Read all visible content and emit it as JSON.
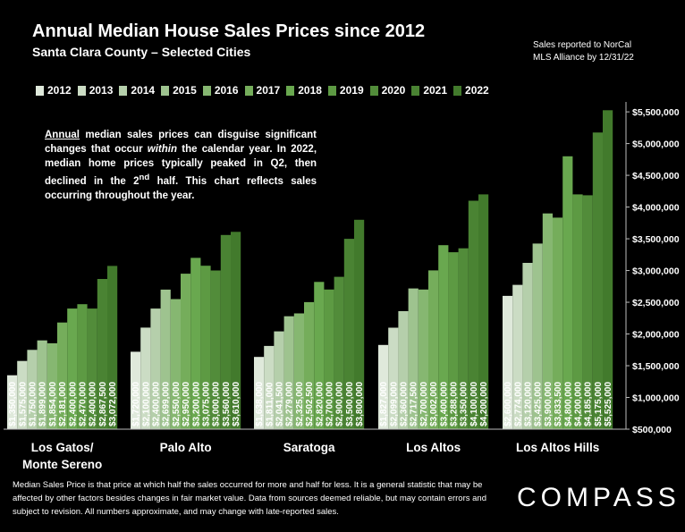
{
  "header": {
    "title": "Annual Median House Sales Prices since 2012",
    "subtitle": "Santa Clara County – Selected Cities",
    "source_line1": "Sales reported to NorCal",
    "source_line2": "MLS Alliance by 12/31/22"
  },
  "note": {
    "underlined": "Annual",
    "text1": " median sales prices can disguise significant changes that occur ",
    "italic": "within",
    "text2": " the calendar year. In 2022, median home prices typically peaked in Q2, then declined in the 2",
    "sup": "nd",
    "text3": " half. This chart reflects sales occurring throughout the year."
  },
  "footer": {
    "text": "Median Sales Price is that price at which half the sales occurred for more and half for less. It is a general statistic that may be affected by other factors besides changes in fair market value. Data from sources deemed reliable, but may contain errors and subject to revision.  All numbers approximate, and may change with late-reported sales.",
    "logo": "COMPASS"
  },
  "colors": [
    "#dfe9db",
    "#cbdcc4",
    "#b5cfab",
    "#9ec38f",
    "#86b771",
    "#75ad5b",
    "#69a84f",
    "#5d9a43",
    "#528c3a",
    "#4a8333",
    "#427a2c"
  ],
  "chart_data": {
    "type": "bar",
    "categories": [
      "Los Gatos/\nMonte Sereno",
      "Palo Alto",
      "Saratoga",
      "Los Altos",
      "Los Altos Hills"
    ],
    "ylim": [
      500000,
      5600000
    ],
    "yticks": [
      500000,
      1000000,
      1500000,
      2000000,
      2500000,
      3000000,
      3500000,
      4000000,
      4500000,
      5000000,
      5500000
    ],
    "ytick_labels": [
      "$500,000",
      "$1,000,000",
      "$1,500,000",
      "$2,000,000",
      "$2,500,000",
      "$3,000,000",
      "$3,500,000",
      "$4,000,000",
      "$4,500,000",
      "$5,000,000",
      "$5,500,000"
    ],
    "legend_position": "top",
    "series": [
      {
        "name": "2012",
        "values": [
          1350000,
          1720000,
          1638000,
          1827000,
          2600000
        ],
        "labels": [
          "$1,350,000",
          "$1,720,000",
          "$1,638,000",
          "$1,827,000",
          "$2,600,000"
        ]
      },
      {
        "name": "2013",
        "values": [
          1575000,
          2100000,
          1811000,
          2099000,
          2774000
        ],
        "labels": [
          "$1,575,000",
          "$2,100,000",
          "$1,811,000",
          "$2,099,000",
          "$2,774,000"
        ]
      },
      {
        "name": "2014",
        "values": [
          1750000,
          2400000,
          2041500,
          2360000,
          3120000
        ],
        "labels": [
          "$1,750,000",
          "$2,400,000",
          "$2,041,500",
          "$2,360,000",
          "$3,120,000"
        ]
      },
      {
        "name": "2015",
        "values": [
          1899000,
          2699000,
          2279000,
          2717500,
          3425000
        ],
        "labels": [
          "$1,899,000",
          "$2,699,000",
          "$2,279,000",
          "$2,717,500",
          "$3,425,000"
        ]
      },
      {
        "name": "2016",
        "values": [
          1854000,
          2550000,
          2325000,
          2700000,
          3900000
        ],
        "labels": [
          "$1,854,000",
          "$2,550,000",
          "$2,325,000",
          "$2,700,000",
          "$3,900,000"
        ]
      },
      {
        "name": "2017",
        "values": [
          2181000,
          2950000,
          2502500,
          3002000,
          3833500
        ],
        "labels": [
          "$2,181,000",
          "$2,950,000",
          "$2,502,500",
          "$3,002,000",
          "$3,833,500"
        ]
      },
      {
        "name": "2018",
        "values": [
          2400000,
          3200000,
          2820000,
          3400000,
          4800000
        ],
        "labels": [
          "$2,400,000",
          "$3,200,000",
          "$2,820,000",
          "$3,400,000",
          "$4,800,000"
        ]
      },
      {
        "name": "2019",
        "values": [
          2470000,
          3075000,
          2700000,
          3288000,
          4200000
        ],
        "labels": [
          "$2,470,000",
          "$3,075,000",
          "$2,700,000",
          "$3,288,000",
          "$4,200,000"
        ]
      },
      {
        "name": "2020",
        "values": [
          2400000,
          3000000,
          2900000,
          3350000,
          4185000
        ],
        "labels": [
          "$2,400,000",
          "$3,000,000",
          "$2,900,000",
          "$3,350,000",
          "$4,185,000"
        ]
      },
      {
        "name": "2021",
        "values": [
          2867500,
          3560000,
          3500000,
          4100000,
          5175000
        ],
        "labels": [
          "$2,867,500",
          "$3,560,000",
          "$3,500,000",
          "$4,100,000",
          "$5,175,000"
        ]
      },
      {
        "name": "2022",
        "values": [
          3072000,
          3610000,
          3800000,
          4200000,
          5525000
        ],
        "labels": [
          "$3,072,000",
          "$3,610,000",
          "$3,800,000",
          "$4,200,000",
          "$5,525,000"
        ]
      }
    ]
  }
}
